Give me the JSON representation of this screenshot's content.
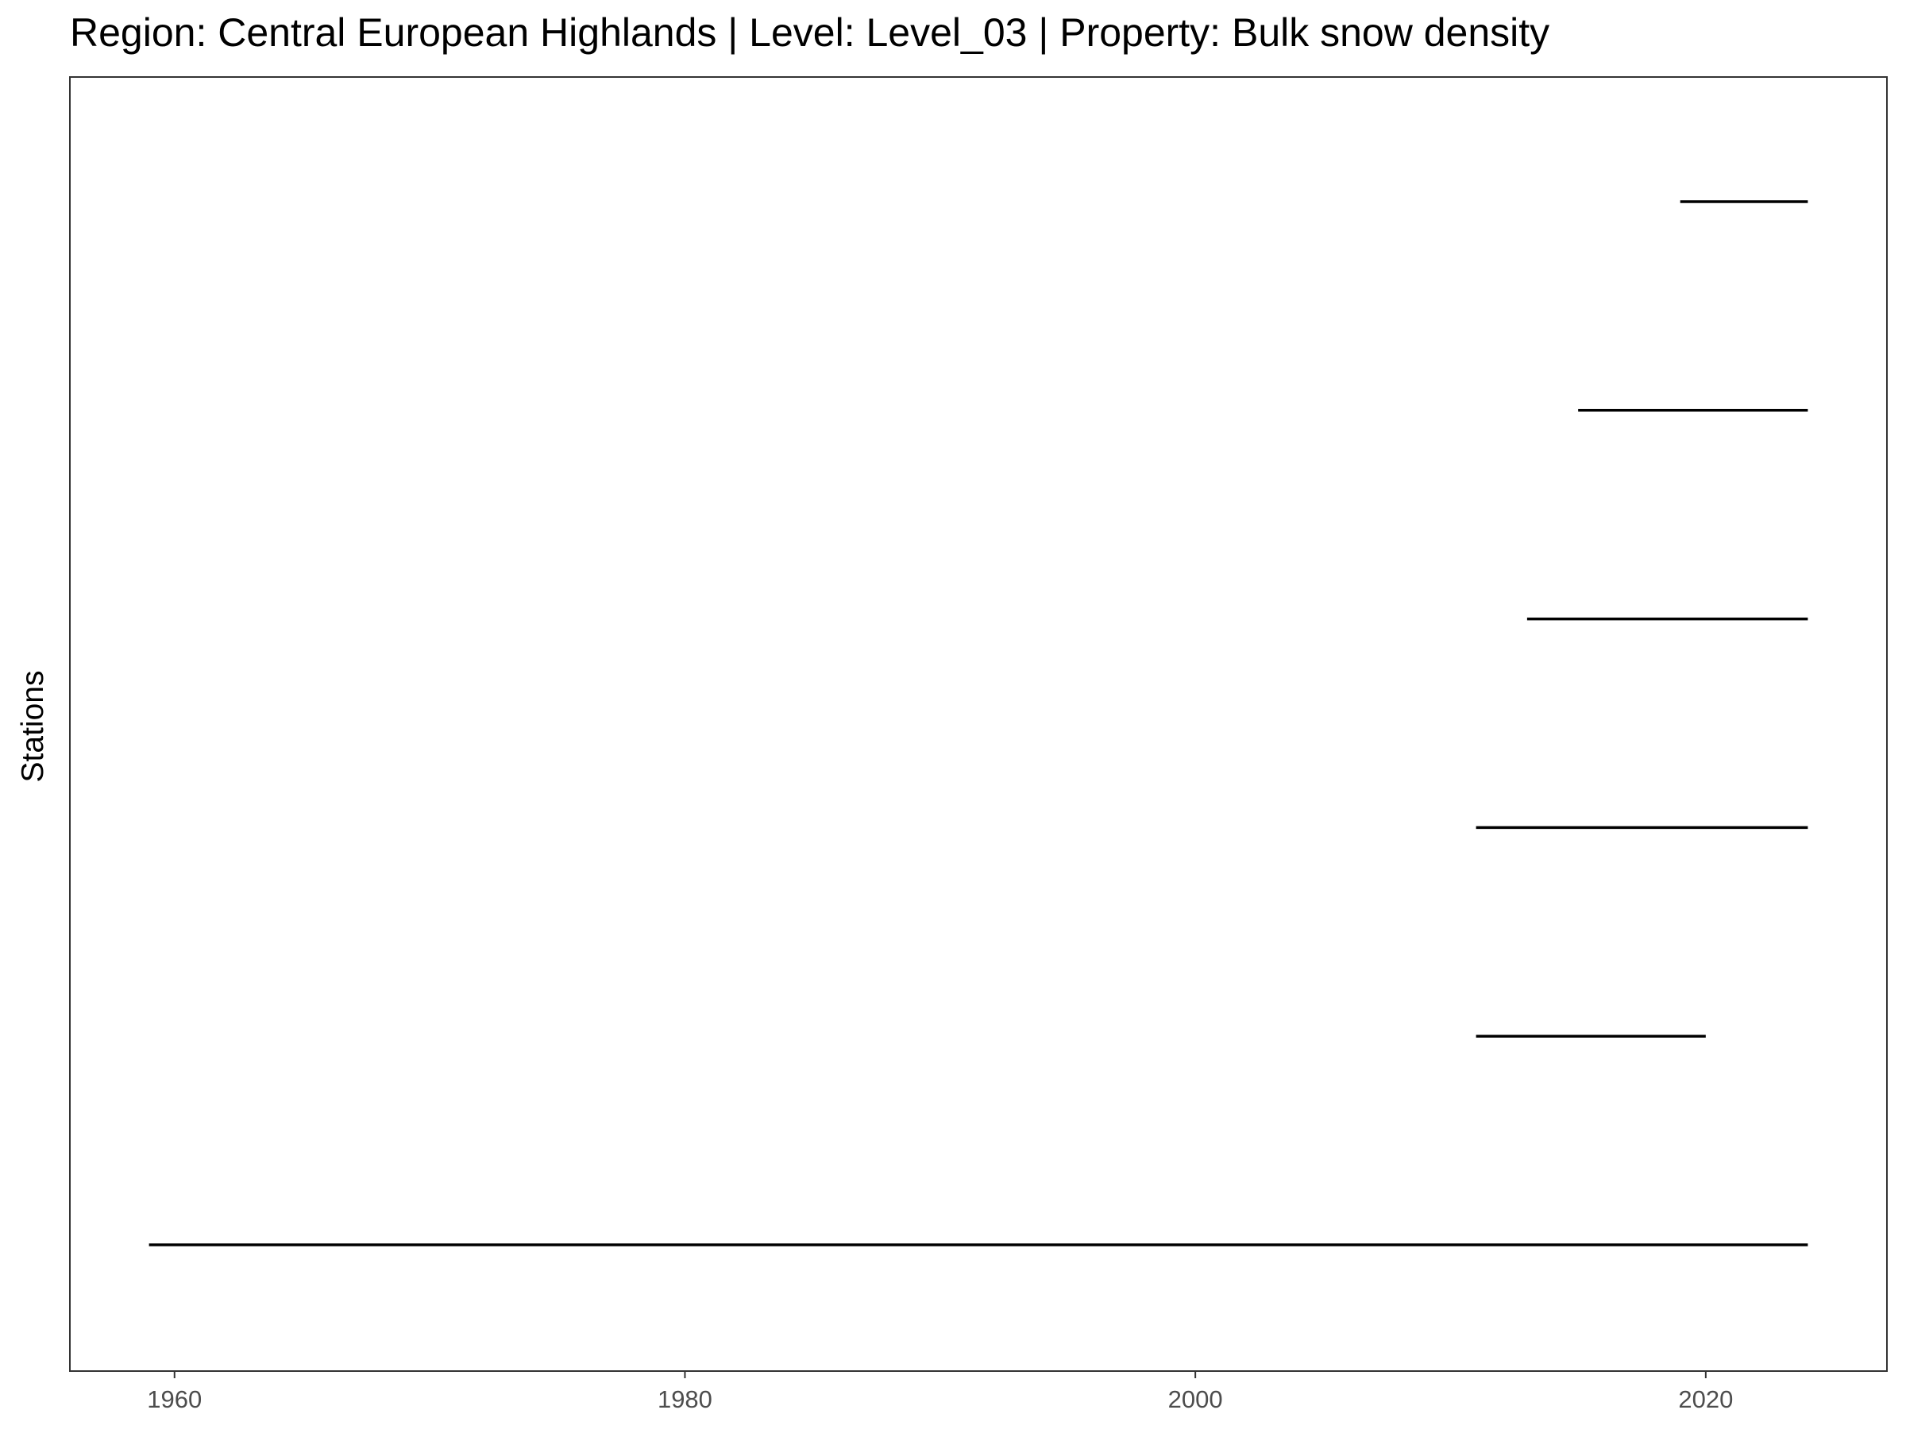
{
  "chart_data": {
    "type": "line",
    "title": "Region: Central European Highlands | Level: Level_03 | Property: Bulk snow density",
    "xlabel": "",
    "ylabel": "Stations",
    "xlim": [
      1955.9,
      2027.1
    ],
    "x_ticks": [
      1960,
      1980,
      2000,
      2020
    ],
    "grid": false,
    "legend": "none",
    "line_color": "#000000",
    "series": [
      {
        "start": 1959,
        "end": 2024
      },
      {
        "start": 2011,
        "end": 2020
      },
      {
        "start": 2011,
        "end": 2024
      },
      {
        "start": 2013,
        "end": 2024
      },
      {
        "start": 2015,
        "end": 2024
      },
      {
        "start": 2019,
        "end": 2024
      }
    ]
  }
}
